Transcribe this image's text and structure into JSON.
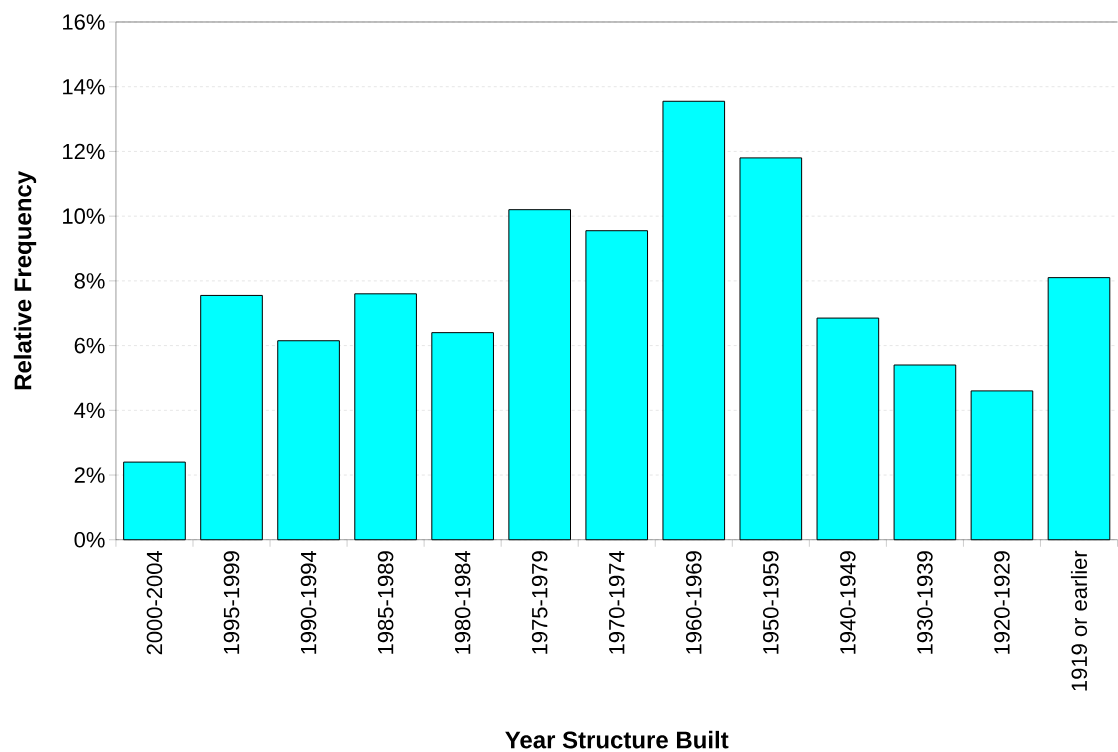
{
  "chart_data": {
    "type": "bar",
    "xlabel": "Year Structure Built",
    "ylabel": "Relative Frequency",
    "categories": [
      "2000-2004",
      "1995-1999",
      "1990-1994",
      "1985-1989",
      "1980-1984",
      "1975-1979",
      "1970-1974",
      "1960-1969",
      "1950-1959",
      "1940-1949",
      "1930-1939",
      "1920-1929",
      "1919 or earlier"
    ],
    "values": [
      2.4,
      7.55,
      6.15,
      7.6,
      6.4,
      10.2,
      9.55,
      13.55,
      11.8,
      6.85,
      5.4,
      4.6,
      8.1
    ],
    "color": "#00ffff",
    "ylim": [
      0,
      16
    ],
    "yticks": [
      {
        "value": 0,
        "label": "0%"
      },
      {
        "value": 2,
        "label": "2%"
      },
      {
        "value": 4,
        "label": "4%"
      },
      {
        "value": 6,
        "label": "6%"
      },
      {
        "value": 8,
        "label": "8%"
      },
      {
        "value": 10,
        "label": "10%"
      },
      {
        "value": 12,
        "label": "12%"
      },
      {
        "value": 14,
        "label": "14%"
      },
      {
        "value": 16,
        "label": "16%"
      }
    ],
    "grid": "y"
  }
}
